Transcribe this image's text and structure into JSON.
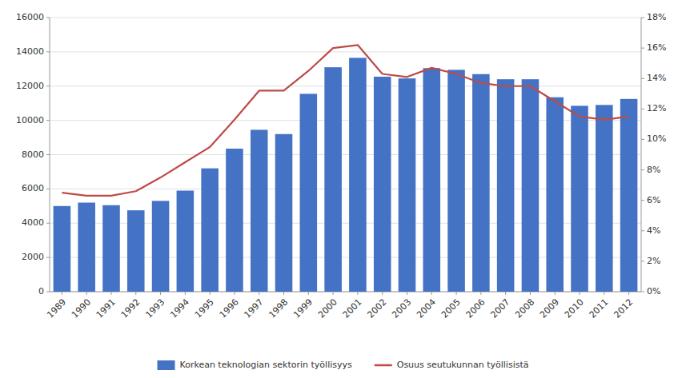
{
  "chart_data": {
    "type": "bar",
    "categories": [
      "1989",
      "1990",
      "1991",
      "1992",
      "1993",
      "1994",
      "1995",
      "1996",
      "1997",
      "1998",
      "1999",
      "2000",
      "2001",
      "2002",
      "2003",
      "2004",
      "2005",
      "2006",
      "2007",
      "2008",
      "2009",
      "2010",
      "2011",
      "2012"
    ],
    "series": [
      {
        "name": "Korkean teknologian sektorin työllisyys",
        "type": "bar",
        "color": "#4472C4",
        "values": [
          5000,
          5200,
          5050,
          4750,
          5300,
          5900,
          7200,
          8350,
          9450,
          9200,
          11550,
          13100,
          13650,
          12550,
          12450,
          13050,
          12950,
          12700,
          12400,
          12400,
          11350,
          10850,
          10900,
          11250
        ]
      },
      {
        "name": "Osuus seutukunnan työllisistä",
        "type": "line",
        "color": "#BE4B48",
        "axis": "y2",
        "values": [
          0.065,
          0.063,
          0.063,
          0.066,
          0.075,
          0.085,
          0.095,
          0.113,
          0.132,
          0.132,
          0.145,
          0.16,
          0.162,
          0.143,
          0.141,
          0.147,
          0.143,
          0.137,
          0.135,
          0.135,
          0.125,
          0.115,
          0.113,
          0.115
        ]
      }
    ],
    "ylim": [
      0,
      16000
    ],
    "yticks": [
      0,
      2000,
      4000,
      6000,
      8000,
      10000,
      12000,
      14000,
      16000
    ],
    "y2lim": [
      0,
      0.18
    ],
    "y2ticks": [
      {
        "value": 0,
        "label": "0%"
      },
      {
        "value": 0.02,
        "label": "2%"
      },
      {
        "value": 0.04,
        "label": "4%"
      },
      {
        "value": 0.06,
        "label": "6%"
      },
      {
        "value": 0.08,
        "label": "8%"
      },
      {
        "value": 0.1,
        "label": "10%"
      },
      {
        "value": 0.12,
        "label": "12%"
      },
      {
        "value": 0.14,
        "label": "14%"
      },
      {
        "value": 0.16,
        "label": "16%"
      },
      {
        "value": 0.18,
        "label": "18%"
      }
    ],
    "grid": true,
    "legend": "bottom"
  }
}
